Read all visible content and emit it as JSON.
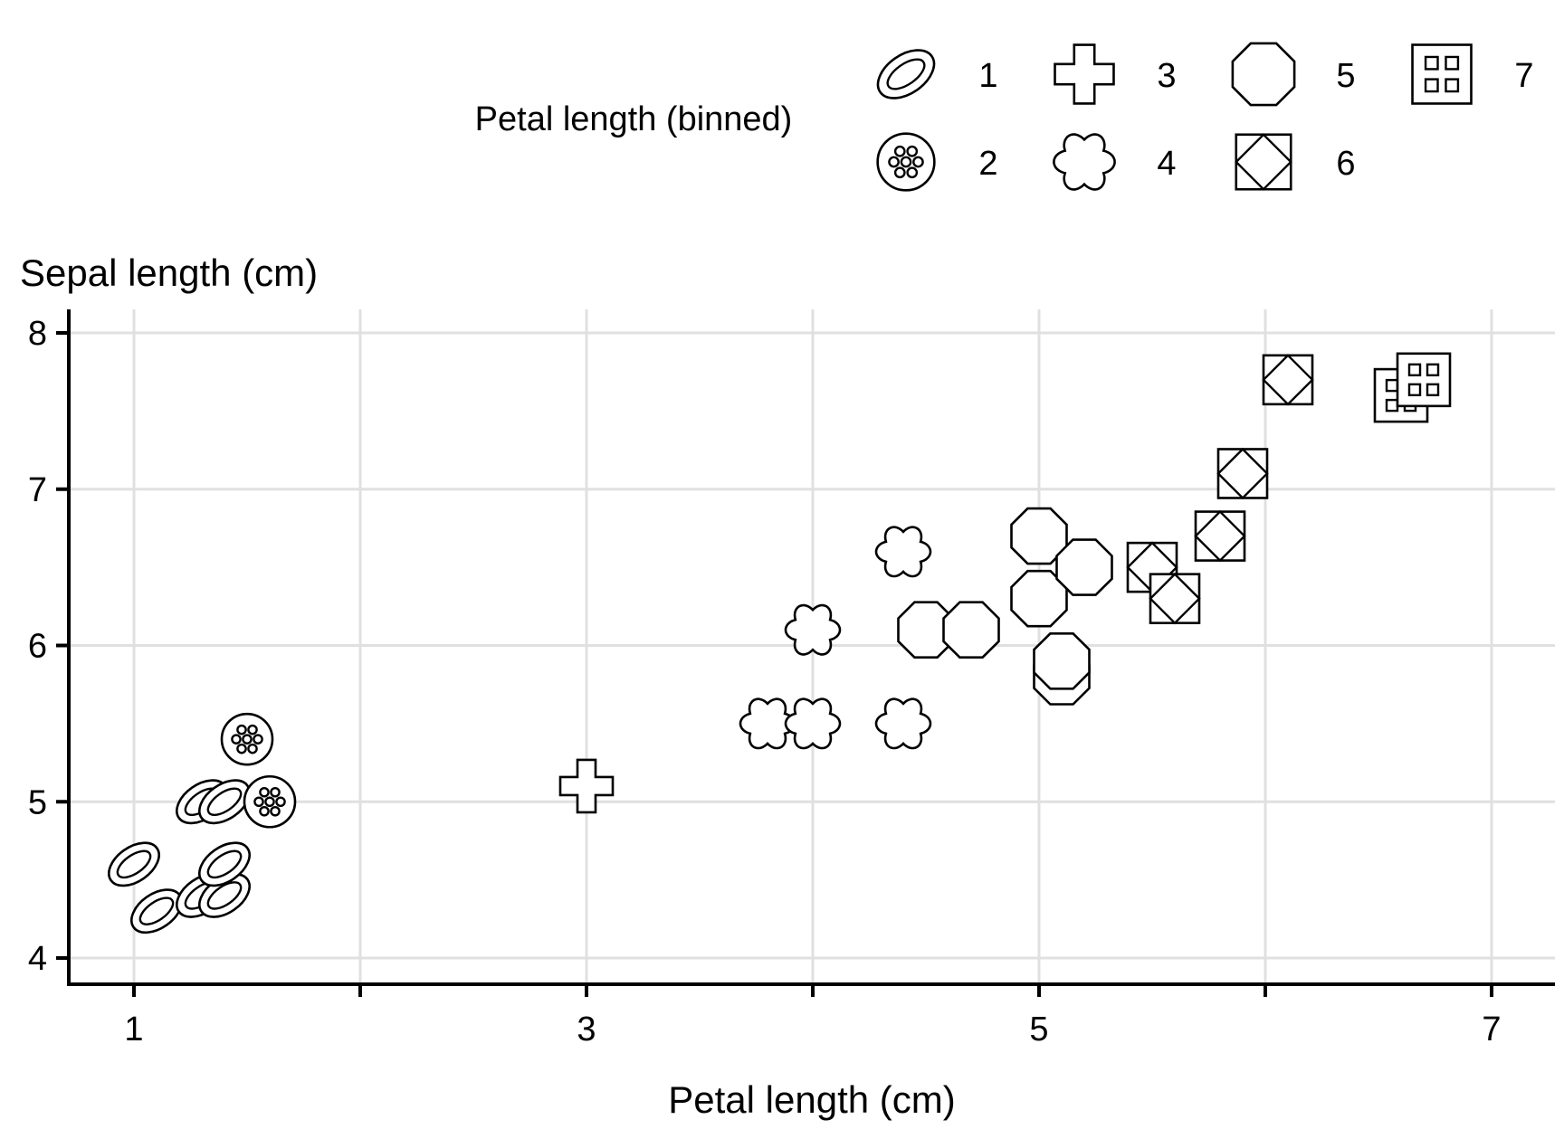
{
  "chart_data": {
    "type": "scatter",
    "title": "",
    "xlabel": "Petal length (cm)",
    "ylabel": "Sepal length (cm)",
    "xlim": [
      0.7,
      7.3
    ],
    "ylim": [
      3.8,
      8.2
    ],
    "x_ticks": [
      1,
      2,
      3,
      4,
      5,
      6,
      7
    ],
    "x_tick_labels": [
      "1",
      "",
      "3",
      "",
      "5",
      "",
      "7"
    ],
    "y_ticks": [
      4,
      5,
      6,
      7,
      8
    ],
    "y_tick_labels": [
      "4",
      "5",
      "6",
      "7",
      "8"
    ],
    "grid": true,
    "legend": {
      "title": "Petal length (binned)",
      "placement": "top",
      "entries": [
        {
          "label": "1",
          "shape": "ellipse"
        },
        {
          "label": "2",
          "shape": "dotted-circle"
        },
        {
          "label": "3",
          "shape": "cross"
        },
        {
          "label": "4",
          "shape": "flower"
        },
        {
          "label": "5",
          "shape": "octagon"
        },
        {
          "label": "6",
          "shape": "square-diamond"
        },
        {
          "label": "7",
          "shape": "square-dots"
        }
      ]
    },
    "points": [
      {
        "x": 1.0,
        "y": 4.6,
        "bin": "1"
      },
      {
        "x": 1.1,
        "y": 4.3,
        "bin": "1"
      },
      {
        "x": 1.3,
        "y": 4.4,
        "bin": "1"
      },
      {
        "x": 1.4,
        "y": 4.4,
        "bin": "1"
      },
      {
        "x": 1.4,
        "y": 4.6,
        "bin": "1"
      },
      {
        "x": 1.3,
        "y": 5.0,
        "bin": "1"
      },
      {
        "x": 1.4,
        "y": 5.0,
        "bin": "1"
      },
      {
        "x": 1.5,
        "y": 5.4,
        "bin": "2"
      },
      {
        "x": 1.6,
        "y": 5.0,
        "bin": "2"
      },
      {
        "x": 3.0,
        "y": 5.1,
        "bin": "3"
      },
      {
        "x": 3.8,
        "y": 5.5,
        "bin": "4"
      },
      {
        "x": 4.0,
        "y": 5.5,
        "bin": "4"
      },
      {
        "x": 4.0,
        "y": 6.1,
        "bin": "4"
      },
      {
        "x": 4.4,
        "y": 5.5,
        "bin": "4"
      },
      {
        "x": 4.4,
        "y": 6.6,
        "bin": "4"
      },
      {
        "x": 4.5,
        "y": 6.1,
        "bin": "5"
      },
      {
        "x": 4.7,
        "y": 6.1,
        "bin": "5"
      },
      {
        "x": 5.0,
        "y": 6.7,
        "bin": "5"
      },
      {
        "x": 5.0,
        "y": 6.3,
        "bin": "5"
      },
      {
        "x": 5.2,
        "y": 6.5,
        "bin": "5"
      },
      {
        "x": 5.1,
        "y": 5.8,
        "bin": "5"
      },
      {
        "x": 5.1,
        "y": 5.9,
        "bin": "5"
      },
      {
        "x": 5.5,
        "y": 6.5,
        "bin": "6"
      },
      {
        "x": 5.6,
        "y": 6.3,
        "bin": "6"
      },
      {
        "x": 5.8,
        "y": 6.7,
        "bin": "6"
      },
      {
        "x": 5.9,
        "y": 7.1,
        "bin": "6"
      },
      {
        "x": 6.1,
        "y": 7.7,
        "bin": "6"
      },
      {
        "x": 6.6,
        "y": 7.6,
        "bin": "7"
      },
      {
        "x": 6.7,
        "y": 7.7,
        "bin": "7"
      }
    ]
  }
}
